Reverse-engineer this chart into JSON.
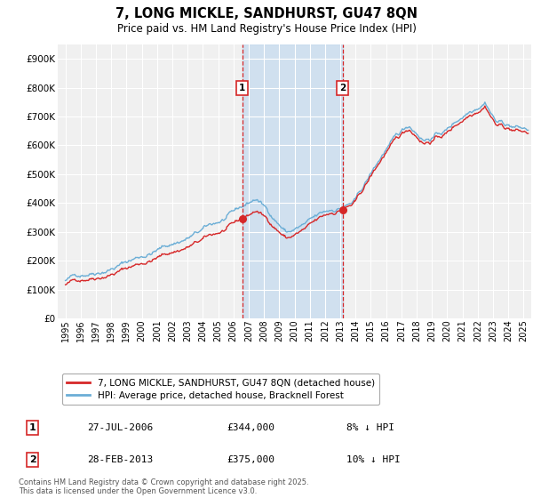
{
  "title": "7, LONG MICKLE, SANDHURST, GU47 8QN",
  "subtitle": "Price paid vs. HM Land Registry's House Price Index (HPI)",
  "legend_line1": "7, LONG MICKLE, SANDHURST, GU47 8QN (detached house)",
  "legend_line2": "HPI: Average price, detached house, Bracknell Forest",
  "annotation1_label": "1",
  "annotation1_date": "27-JUL-2006",
  "annotation1_price": "£344,000",
  "annotation1_hpi": "8% ↓ HPI",
  "annotation2_label": "2",
  "annotation2_date": "28-FEB-2013",
  "annotation2_price": "£375,000",
  "annotation2_hpi": "10% ↓ HPI",
  "footnote": "Contains HM Land Registry data © Crown copyright and database right 2025.\nThis data is licensed under the Open Government Licence v3.0.",
  "sale1_date_num": 2006.57,
  "sale1_price": 344000,
  "sale2_date_num": 2013.16,
  "sale2_price": 375000,
  "vline1_x": 2006.57,
  "vline2_x": 2013.16,
  "shaded_region_start": 2006.57,
  "shaded_region_end": 2013.16,
  "ylim": [
    0,
    950000
  ],
  "xlim_start": 1994.5,
  "xlim_end": 2025.5,
  "ytick_values": [
    0,
    100000,
    200000,
    300000,
    400000,
    500000,
    600000,
    700000,
    800000,
    900000
  ],
  "ytick_labels": [
    "£0",
    "£100K",
    "£200K",
    "£300K",
    "£400K",
    "£500K",
    "£600K",
    "£700K",
    "£800K",
    "£900K"
  ],
  "xtick_years": [
    1995,
    1996,
    1997,
    1998,
    1999,
    2000,
    2001,
    2002,
    2003,
    2004,
    2005,
    2006,
    2007,
    2008,
    2009,
    2010,
    2011,
    2012,
    2013,
    2014,
    2015,
    2016,
    2017,
    2018,
    2019,
    2020,
    2021,
    2022,
    2023,
    2024,
    2025
  ],
  "hpi_color": "#6baed6",
  "price_color": "#d62728",
  "sale_dot_color": "#d62728",
  "shaded_color": "#c6dbef",
  "vline_color": "#d62728",
  "bg_color": "#f0f0f0",
  "grid_color": "#ffffff",
  "annotation_box_color": "#d62728"
}
